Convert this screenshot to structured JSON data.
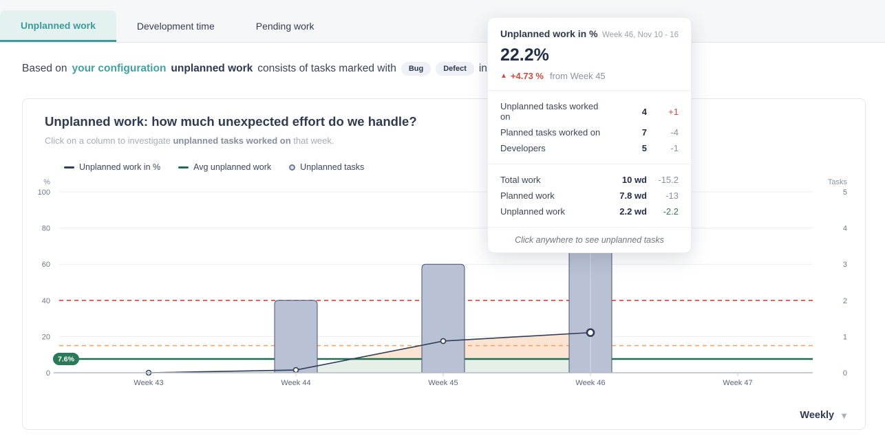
{
  "colors": {
    "accent": "#3d9a9a",
    "navy_line": "#2f3c58",
    "avg_green": "#1e6e52",
    "threshold_red": "#d0453c",
    "threshold_orange": "#f5a362",
    "bar_fill": "#b9c1d4",
    "bar_stroke": "#47536e",
    "fill_green": "#e6efe8",
    "fill_peach": "#fbe5d2"
  },
  "tabs": [
    {
      "label": "Unplanned work",
      "active": true
    },
    {
      "label": "Development time",
      "active": false
    },
    {
      "label": "Pending work",
      "active": false
    }
  ],
  "description": {
    "prefix": "Based on",
    "link": "your configuration",
    "bold": "unplanned work",
    "middle": "consists of tasks marked with",
    "badges": [
      "Bug",
      "Defect"
    ],
    "conjunction": "in",
    "integration_icon": "clickup-icon"
  },
  "card": {
    "title": "Unplanned work: how much unexpected effort do we handle?",
    "subtitle_prefix": "Click on a column to investigate ",
    "subtitle_bold": "unplanned tasks worked on",
    "subtitle_suffix": " that week.",
    "period": "Weekly"
  },
  "legend": [
    {
      "label": "Unplanned work in %",
      "swatch": "line-navy"
    },
    {
      "label": "Avg unplanned work",
      "swatch": "line-green"
    },
    {
      "label": "Unplanned tasks",
      "swatch": "circle"
    }
  ],
  "tooltip": {
    "title": "Unplanned work in %",
    "week": "Week 46, Nov 10 - 16",
    "value": "22.2%",
    "delta_arrow": "▲",
    "delta": "+4.73 %",
    "delta_from": "from Week 45",
    "group1": [
      {
        "label": "Unplanned tasks worked on",
        "value": "4",
        "diff": "+1",
        "tone": "red"
      },
      {
        "label": "Planned tasks worked on",
        "value": "7",
        "diff": "-4",
        "tone": "gray"
      },
      {
        "label": "Developers",
        "value": "5",
        "diff": "-1",
        "tone": "gray"
      }
    ],
    "group2": [
      {
        "label": "Total work",
        "value": "10 wd",
        "diff": "-15.2",
        "tone": "gray"
      },
      {
        "label": "Planned work",
        "value": "7.8 wd",
        "diff": "-13",
        "tone": "gray"
      },
      {
        "label": "Unplanned work",
        "value": "2.2 wd",
        "diff": "-2.2",
        "tone": "green"
      }
    ],
    "footer": "Click anywhere to see unplanned tasks"
  },
  "chart_data": {
    "type": "bar",
    "x": [
      "Week 43",
      "Week 44",
      "Week 45",
      "Week 46",
      "Week 47"
    ],
    "series": [
      {
        "name": "Unplanned work in %",
        "type": "line",
        "axis": "left",
        "values": [
          0,
          1.5,
          17.5,
          22.2,
          null
        ],
        "color": "#2f3c58"
      },
      {
        "name": "Unplanned tasks",
        "type": "bar",
        "axis": "right",
        "values": [
          0,
          2,
          3,
          4,
          null
        ],
        "color": "#b9c1d4"
      },
      {
        "name": "Avg unplanned work",
        "type": "hline",
        "axis": "left",
        "value": 7.6,
        "color": "#1e6e52",
        "badge": "7.6%"
      }
    ],
    "thresholds": [
      {
        "value": 40,
        "style": "dashed",
        "color": "#d0453c"
      },
      {
        "value": 15,
        "style": "dashed",
        "color": "#f5a362"
      }
    ],
    "left_axis": {
      "label": "%",
      "range": [
        0,
        100
      ],
      "ticks": [
        0,
        20,
        40,
        60,
        80,
        100
      ]
    },
    "right_axis": {
      "label": "Tasks",
      "range": [
        0,
        5
      ],
      "ticks": [
        0,
        1,
        2,
        3,
        4,
        5
      ]
    },
    "highlight_index": 3,
    "grid": true,
    "legend_position": "top"
  }
}
